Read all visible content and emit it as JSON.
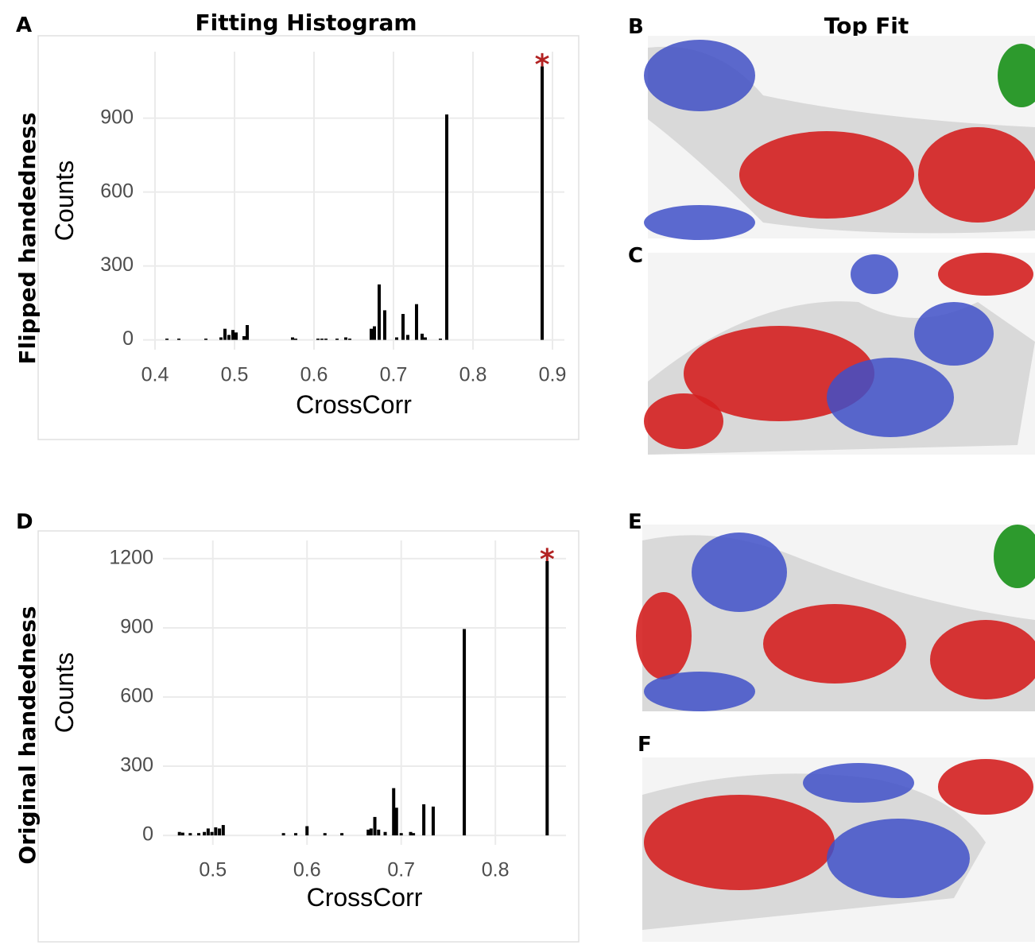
{
  "headings": {
    "left": "Fitting Histogram",
    "right": "Top Fit"
  },
  "row_labels": [
    "Flipped handedness",
    "Original handedness"
  ],
  "panels": [
    "A",
    "B",
    "C",
    "D",
    "E",
    "F"
  ],
  "chart_data": [
    {
      "type": "bar",
      "x_label": "CrossCorr",
      "y_label": "Counts",
      "color": "#000000",
      "annotation": "*",
      "annotation_color": "#b22222",
      "x": [
        0.415,
        0.43,
        0.464,
        0.483,
        0.488,
        0.493,
        0.498,
        0.502,
        0.512,
        0.516,
        0.573,
        0.577,
        0.605,
        0.61,
        0.615,
        0.629,
        0.64,
        0.645,
        0.672,
        0.676,
        0.682,
        0.689,
        0.704,
        0.712,
        0.718,
        0.729,
        0.736,
        0.74,
        0.759,
        0.767,
        0.887
      ],
      "values": [
        5,
        5,
        5,
        10,
        45,
        20,
        40,
        30,
        15,
        60,
        10,
        5,
        5,
        5,
        5,
        5,
        10,
        5,
        45,
        55,
        225,
        120,
        10,
        105,
        20,
        145,
        25,
        10,
        5,
        915,
        1110
      ],
      "xlim": [
        0.385,
        0.915
      ],
      "xticks": [
        0.4,
        0.5,
        0.6,
        0.7,
        0.8,
        0.9
      ],
      "ylim": [
        -40,
        1170
      ],
      "yticks": [
        0,
        300,
        600,
        900
      ],
      "grid": true
    },
    {
      "type": "bar",
      "x_label": "CrossCorr",
      "y_label": "Counts",
      "color": "#000000",
      "annotation": "*",
      "annotation_color": "#b22222",
      "x": [
        0.4645,
        0.468,
        0.476,
        0.485,
        0.491,
        0.495,
        0.499,
        0.503,
        0.507,
        0.511,
        0.575,
        0.588,
        0.6,
        0.619,
        0.637,
        0.665,
        0.668,
        0.672,
        0.676,
        0.683,
        0.692,
        0.695,
        0.7,
        0.71,
        0.713,
        0.724,
        0.734,
        0.767,
        0.855
      ],
      "values": [
        15,
        12,
        10,
        10,
        15,
        30,
        15,
        35,
        30,
        45,
        10,
        10,
        40,
        10,
        10,
        25,
        30,
        80,
        25,
        15,
        205,
        120,
        10,
        15,
        10,
        135,
        125,
        895,
        1190
      ],
      "xlim": [
        0.447,
        0.875
      ],
      "xticks": [
        0.5,
        0.6,
        0.7,
        0.8
      ],
      "ylim": [
        -41,
        1279
      ],
      "yticks": [
        0,
        300,
        600,
        900,
        1200
      ],
      "grid": true
    }
  ]
}
